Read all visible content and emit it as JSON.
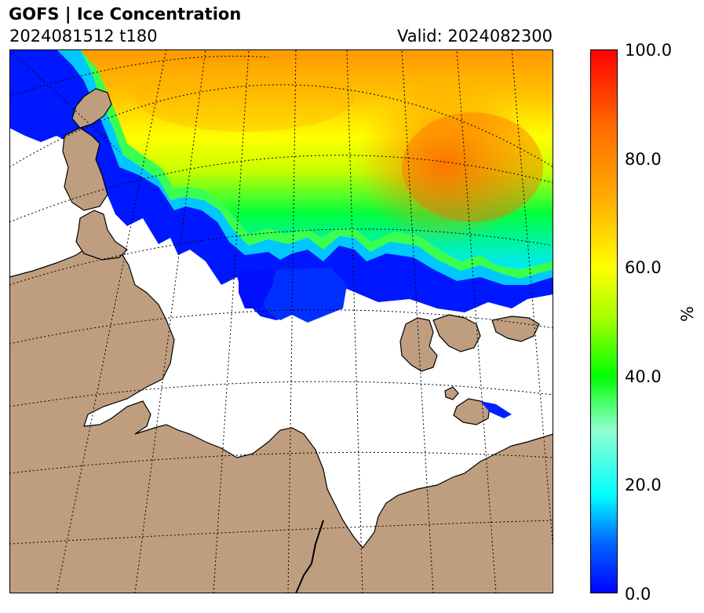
{
  "header": {
    "title": "GOFS  |  Ice Concentration",
    "run_info": "2024081512 t180",
    "valid_info": "Valid: 2024082300"
  },
  "colorbar": {
    "unit": "%",
    "ticks": [
      "0.0",
      "20.0",
      "40.0",
      "60.0",
      "80.0",
      "100.0"
    ],
    "range": [
      0,
      100
    ],
    "colors": [
      "#0000ff",
      "#00a0ff",
      "#00ffff",
      "#80ffd0",
      "#00ff00",
      "#a0ff00",
      "#ffff00",
      "#ffb000",
      "#ff6000",
      "#ff0000"
    ]
  },
  "map": {
    "land_color": "#bf9e80",
    "ocean_color": "#ffffff",
    "graticule_style": "dotted"
  }
}
